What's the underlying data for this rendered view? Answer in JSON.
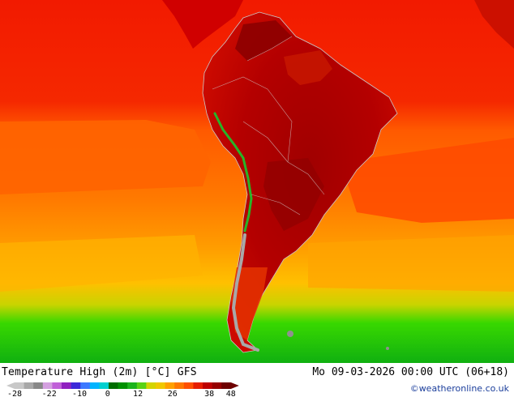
{
  "map": {
    "title": "Temperature High (2m) [°C] GFS",
    "valid_time": "Mo 09-03-2026 00:00 UTC (06+18)",
    "credit": "©weatheronline.co.uk",
    "region": "South America"
  },
  "legend": {
    "tick_labels": [
      "-28",
      "-22",
      "-10",
      "0",
      "12",
      "26",
      "38",
      "48"
    ],
    "colors": [
      "#c8c8c8",
      "#a8a8a8",
      "#888888",
      "#d4a0e0",
      "#c060d8",
      "#9020c0",
      "#3c28d8",
      "#3c78ff",
      "#00b4ff",
      "#00d0d0",
      "#006e00",
      "#009000",
      "#1cb41c",
      "#5ad214",
      "#d4d400",
      "#f0c800",
      "#ffa000",
      "#ff7800",
      "#ff5000",
      "#e61e00",
      "#be0000",
      "#960000",
      "#6e0000"
    ]
  },
  "colors": {
    "ocean_warm": "#f01c00",
    "ocean_mid": "#ff6a00",
    "ocean_cool": "#ffb000",
    "ocean_cold": "#28c800",
    "land_hot": "#b80000",
    "land_very_hot": "#8c0000",
    "andes": "#a0a0a0",
    "border": "#c8c8c8"
  }
}
